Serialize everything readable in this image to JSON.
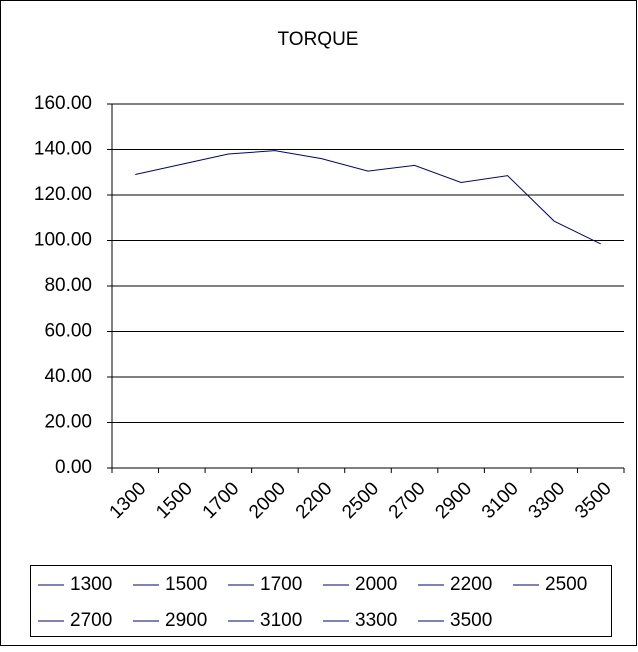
{
  "chart_data": {
    "type": "line",
    "title": "TORQUE",
    "categories": [
      "1300",
      "1500",
      "1700",
      "2000",
      "2200",
      "2500",
      "2700",
      "2900",
      "3100",
      "3300",
      "3500"
    ],
    "values": [
      129,
      133.5,
      138,
      139.5,
      136,
      130.5,
      133,
      125.5,
      128.5,
      108.5,
      98.5
    ],
    "color": "#000080",
    "ylim": [
      0,
      160
    ],
    "yticks": [
      {
        "value": 0,
        "label": "0.00"
      },
      {
        "value": 20,
        "label": "20.00"
      },
      {
        "value": 40,
        "label": "40.00"
      },
      {
        "value": 60,
        "label": "60.00"
      },
      {
        "value": 80,
        "label": "80.00"
      },
      {
        "value": 100,
        "label": "100.00"
      },
      {
        "value": 120,
        "label": "120.00"
      },
      {
        "value": 140,
        "label": "140.00"
      },
      {
        "value": 160,
        "label": "160.00"
      }
    ],
    "grid": true,
    "legend": "bottom"
  }
}
